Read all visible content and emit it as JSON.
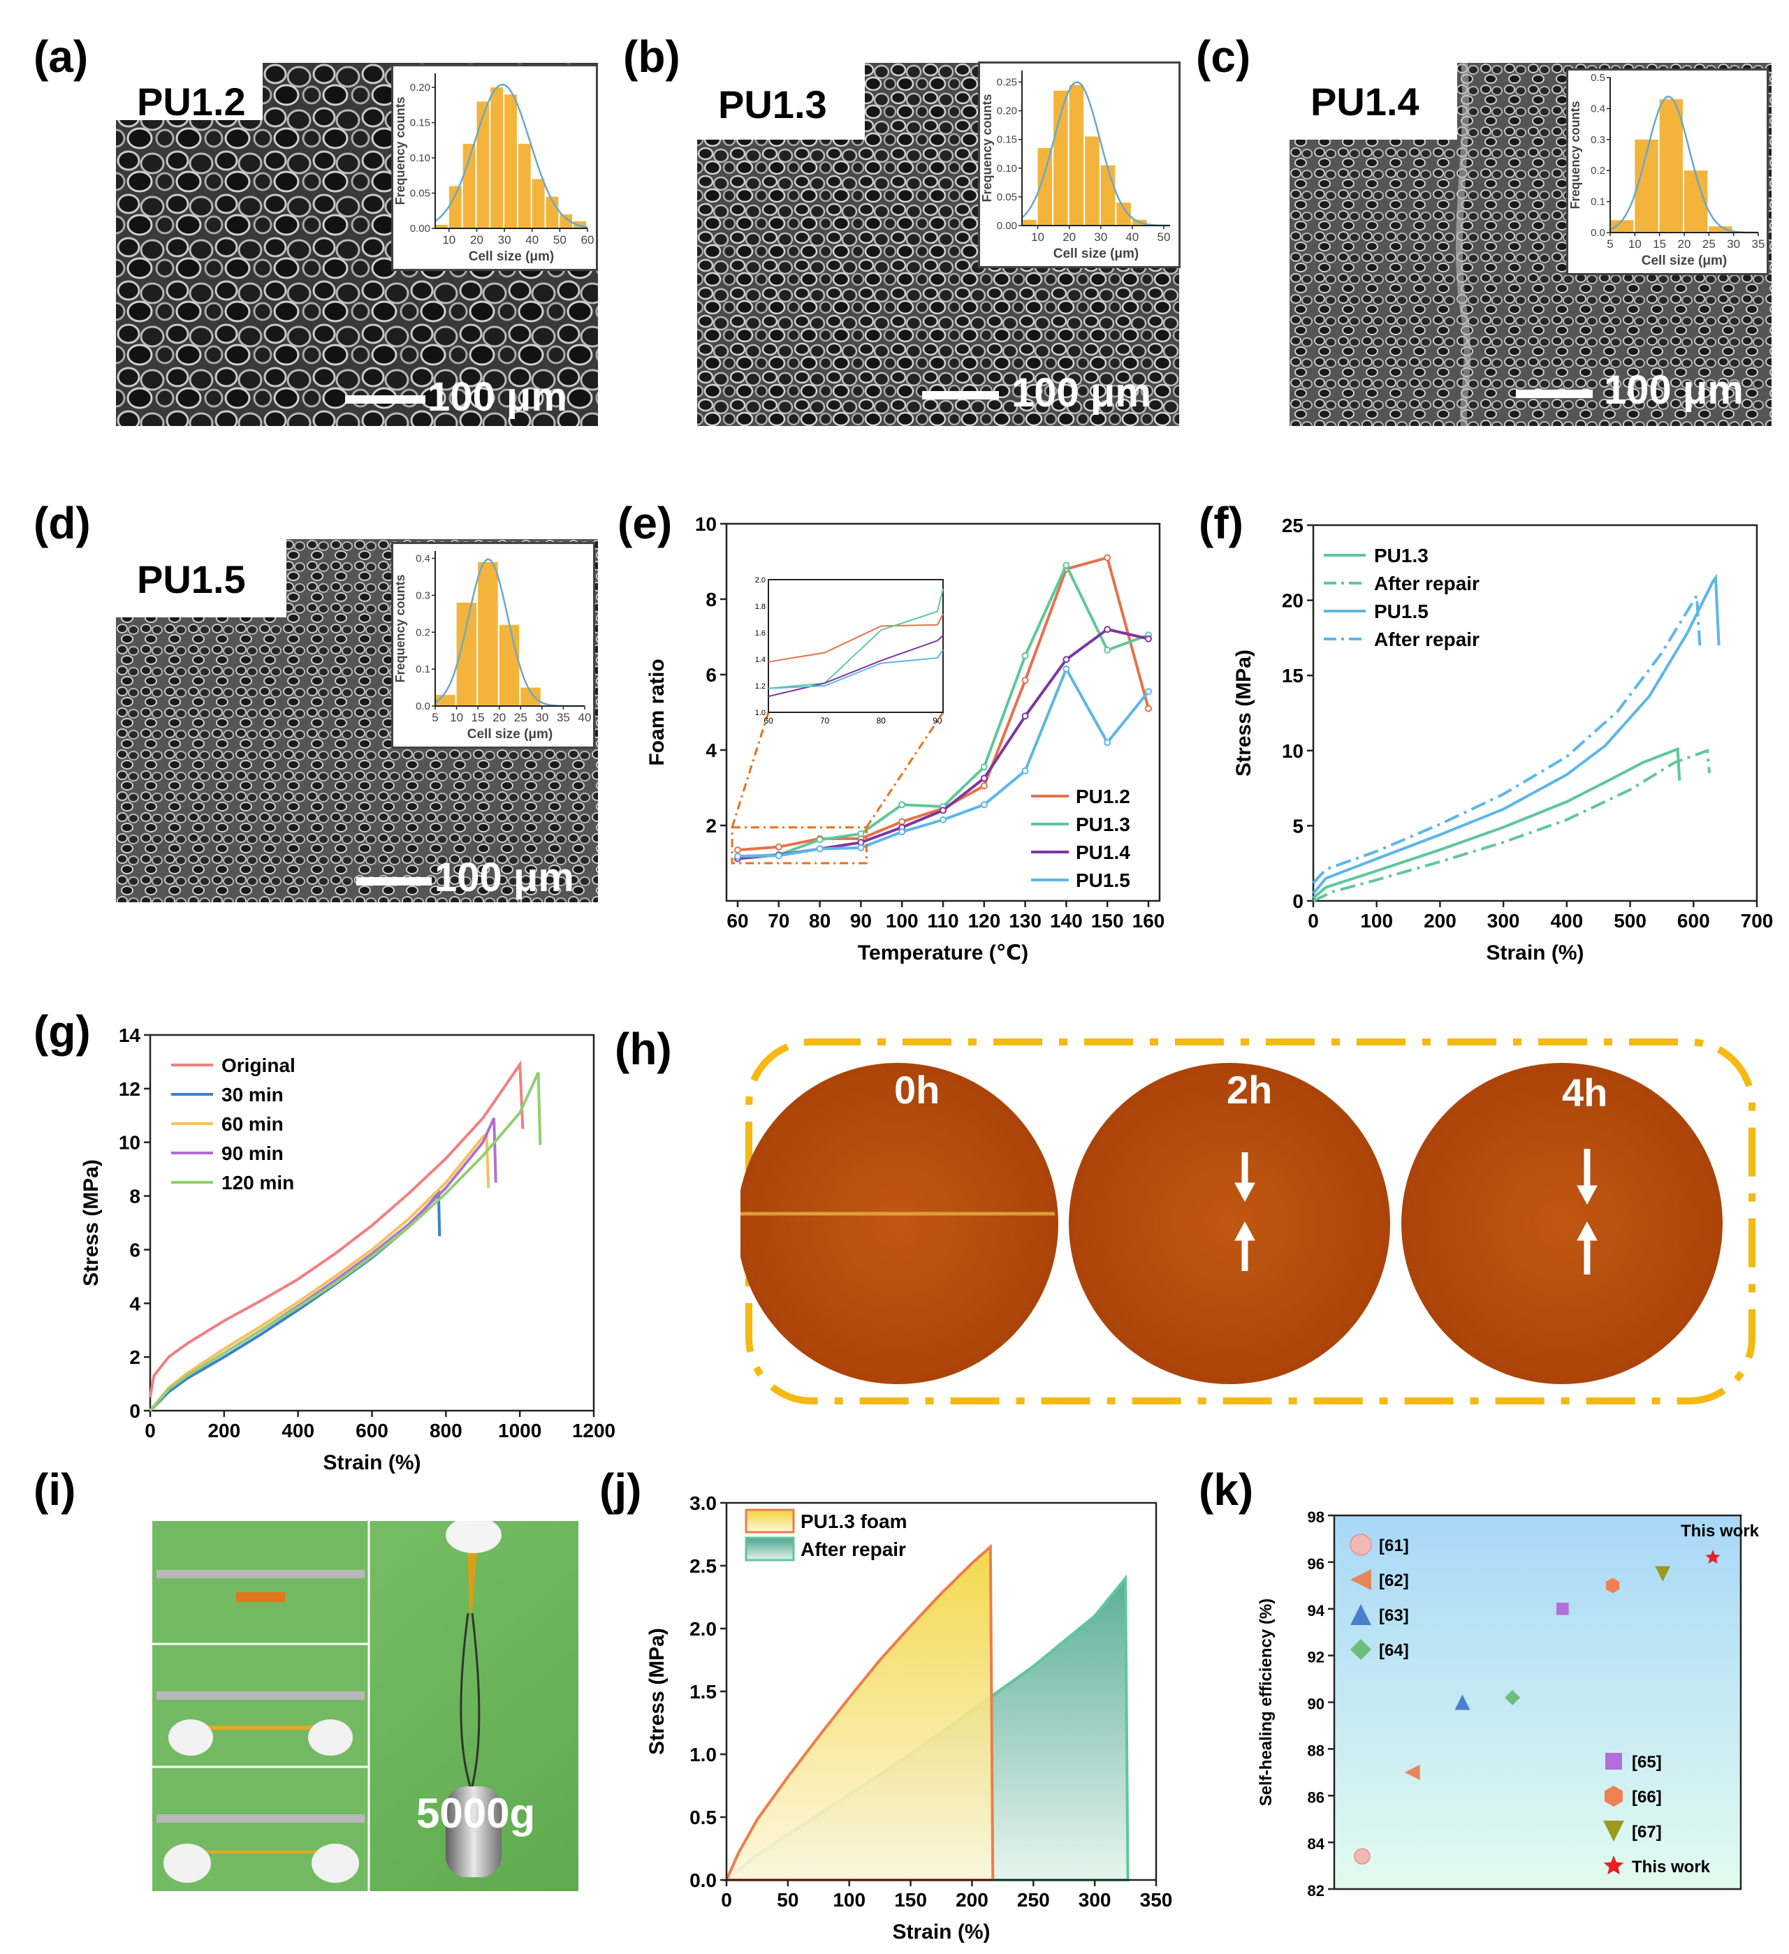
{
  "panels": {
    "a": {
      "letter": "(a)",
      "sample": "PU1.2",
      "scale": "100 μm",
      "inset": {
        "bins": [
          5,
          10,
          15,
          20,
          25,
          30,
          35,
          40,
          45,
          50,
          55
        ],
        "counts": [
          0.005,
          0.06,
          0.12,
          0.18,
          0.2,
          0.19,
          0.12,
          0.07,
          0.045,
          0.02,
          0.01
        ],
        "xticks": [
          "10",
          "20",
          "30",
          "40",
          "50",
          "60"
        ],
        "yticks": [
          "0.00",
          "0.05",
          "0.10",
          "0.15",
          "0.20"
        ],
        "xmin": 5,
        "xmax": 60,
        "ymax": 0.22,
        "xlabel": "Cell size (μm)",
        "ylabel": "Frequency counts"
      }
    },
    "b": {
      "letter": "(b)",
      "sample": "PU1.3",
      "scale": "100 μm",
      "inset": {
        "bins": [
          5,
          10,
          15,
          20,
          25,
          30,
          35,
          40
        ],
        "counts": [
          0.01,
          0.135,
          0.235,
          0.245,
          0.155,
          0.105,
          0.04,
          0.01
        ],
        "xticks": [
          "10",
          "20",
          "30",
          "40",
          "50"
        ],
        "yticks": [
          "0.00",
          "0.05",
          "0.10",
          "0.15",
          "0.20",
          "0.25"
        ],
        "xmin": 5,
        "xmax": 52,
        "ymax": 0.27,
        "xlabel": "Cell size (μm)",
        "ylabel": "Frequency counts"
      }
    },
    "c": {
      "letter": "(c)",
      "sample": "PU1.4",
      "scale": "100 μm",
      "inset": {
        "bins": [
          5,
          10,
          15,
          20,
          25,
          30
        ],
        "counts": [
          0.04,
          0.3,
          0.43,
          0.2,
          0.02,
          0.0
        ],
        "xticks": [
          "5",
          "10",
          "15",
          "20",
          "25",
          "30",
          "35"
        ],
        "yticks": [
          "0.0",
          "0.1",
          "0.2",
          "0.3",
          "0.4",
          "0.5"
        ],
        "xmin": 5,
        "xmax": 35,
        "ymax": 0.5,
        "xlabel": "Cell size (μm)",
        "ylabel": "Frequency counts"
      }
    },
    "d": {
      "letter": "(d)",
      "sample": "PU1.5",
      "scale": "100 μm",
      "inset": {
        "bins": [
          5,
          10,
          15,
          20,
          25
        ],
        "counts": [
          0.03,
          0.28,
          0.39,
          0.22,
          0.05
        ],
        "xticks": [
          "5",
          "10",
          "15",
          "20",
          "25",
          "30",
          "35",
          "40"
        ],
        "yticks": [
          "0.0",
          "0.1",
          "0.2",
          "0.3",
          "0.4"
        ],
        "xmin": 5,
        "xmax": 40,
        "ymax": 0.42,
        "xlabel": "Cell size (μm)",
        "ylabel": "Frequency counts"
      }
    },
    "e": {
      "letter": "(e)"
    },
    "f": {
      "letter": "(f)"
    },
    "g": {
      "letter": "(g)"
    },
    "h": {
      "letter": "(h)",
      "labels": [
        "0h",
        "2h",
        "4h"
      ]
    },
    "i": {
      "letter": "(i)",
      "weight": "5000g"
    },
    "j": {
      "letter": "(j)"
    },
    "k": {
      "letter": "(k)"
    }
  },
  "chart_data": [
    {
      "id": "e",
      "type": "line",
      "xlabel": "Temperature (℃)",
      "ylabel": "Foam ratio",
      "x": [
        60,
        70,
        80,
        90,
        100,
        110,
        120,
        130,
        140,
        150,
        160
      ],
      "xticks": [
        "60",
        "70",
        "80",
        "90",
        "100",
        "110",
        "120",
        "130",
        "140",
        "150",
        "160"
      ],
      "ylim": [
        0,
        10
      ],
      "yticks": [
        "2",
        "4",
        "6",
        "8",
        "10"
      ],
      "series": [
        {
          "name": "PU1.2",
          "color": "#e8704a",
          "values": [
            1.35,
            1.43,
            1.65,
            1.65,
            2.1,
            2.45,
            3.05,
            5.85,
            8.8,
            9.1,
            5.1
          ]
        },
        {
          "name": "PU1.3",
          "color": "#5fc79a",
          "values": [
            1.18,
            1.22,
            1.62,
            1.78,
            2.55,
            2.5,
            3.55,
            6.5,
            8.9,
            6.65,
            7.05
          ]
        },
        {
          "name": "PU1.4",
          "color": "#7d35a3",
          "values": [
            1.12,
            1.22,
            1.38,
            1.55,
            1.95,
            2.4,
            3.25,
            4.9,
            6.4,
            7.2,
            6.95
          ]
        },
        {
          "name": "PU1.5",
          "color": "#5cb6ea",
          "values": [
            1.18,
            1.2,
            1.38,
            1.41,
            1.83,
            2.15,
            2.55,
            3.45,
            6.15,
            4.2,
            5.55
          ]
        }
      ],
      "inset": {
        "xlim": [
          60,
          91
        ],
        "ylim": [
          1.0,
          2.0
        ],
        "xticks": [
          "60",
          "70",
          "80",
          "90"
        ],
        "yticks": [
          "1.0",
          "1.2",
          "1.4",
          "1.6",
          "1.8",
          "2.0"
        ],
        "x": [
          60,
          70,
          80,
          90,
          91
        ]
      }
    },
    {
      "id": "f",
      "type": "line",
      "xlabel": "Strain (%)",
      "ylabel": "Stress (MPa)",
      "xlim": [
        0,
        700
      ],
      "ylim": [
        0,
        25
      ],
      "xticks": [
        "0",
        "100",
        "200",
        "300",
        "400",
        "500",
        "600",
        "700"
      ],
      "yticks": [
        "0",
        "5",
        "10",
        "15",
        "20",
        "25"
      ],
      "series": [
        {
          "name": "PU1.3",
          "color": "#5fc79a",
          "dash": false,
          "points": [
            [
              0,
              0.2
            ],
            [
              20,
              0.9
            ],
            [
              100,
              2.0
            ],
            [
              200,
              3.4
            ],
            [
              300,
              4.9
            ],
            [
              400,
              6.6
            ],
            [
              470,
              8.1
            ],
            [
              520,
              9.2
            ],
            [
              575,
              10.1
            ],
            [
              578,
              8.0
            ]
          ]
        },
        {
          "name": "After repair",
          "color": "#5fc79a",
          "dash": true,
          "points": [
            [
              0,
              0
            ],
            [
              30,
              0.6
            ],
            [
              100,
              1.4
            ],
            [
              200,
              2.6
            ],
            [
              300,
              3.9
            ],
            [
              400,
              5.4
            ],
            [
              500,
              7.4
            ],
            [
              570,
              9.2
            ],
            [
              622,
              10.0
            ],
            [
              625,
              8.5
            ]
          ]
        },
        {
          "name": "PU1.5",
          "color": "#5cb6ea",
          "dash": false,
          "points": [
            [
              0,
              0.5
            ],
            [
              20,
              1.5
            ],
            [
              100,
              2.8
            ],
            [
              200,
              4.4
            ],
            [
              300,
              6.1
            ],
            [
              400,
              8.4
            ],
            [
              460,
              10.3
            ],
            [
              530,
              13.6
            ],
            [
              590,
              17.8
            ],
            [
              630,
              21.2
            ],
            [
              635,
              21.5
            ],
            [
              640,
              17.0
            ]
          ]
        },
        {
          "name": "After repair",
          "color": "#5cb6ea",
          "dash": true,
          "points": [
            [
              0,
              1.2
            ],
            [
              20,
              2.1
            ],
            [
              100,
              3.3
            ],
            [
              200,
              5.1
            ],
            [
              300,
              7.1
            ],
            [
              400,
              9.6
            ],
            [
              480,
              12.6
            ],
            [
              550,
              16.5
            ],
            [
              605,
              20.3
            ],
            [
              610,
              17.0
            ]
          ]
        }
      ]
    },
    {
      "id": "g",
      "type": "line",
      "xlabel": "Strain (%)",
      "ylabel": "Stress (MPa)",
      "xlim": [
        0,
        1200
      ],
      "ylim": [
        0,
        14
      ],
      "xticks": [
        "0",
        "200",
        "400",
        "600",
        "800",
        "1000",
        "1200"
      ],
      "yticks": [
        "0",
        "2",
        "4",
        "6",
        "8",
        "10",
        "12",
        "14"
      ],
      "series": [
        {
          "name": "Original",
          "color": "#f08080",
          "points": [
            [
              0,
              0.5
            ],
            [
              10,
              1.3
            ],
            [
              50,
              2.0
            ],
            [
              100,
              2.5
            ],
            [
              200,
              3.35
            ],
            [
              300,
              4.1
            ],
            [
              400,
              4.9
            ],
            [
              500,
              5.85
            ],
            [
              600,
              6.9
            ],
            [
              700,
              8.1
            ],
            [
              800,
              9.4
            ],
            [
              900,
              10.9
            ],
            [
              1000,
              12.9
            ],
            [
              1008,
              10.5
            ]
          ]
        },
        {
          "name": "30 min",
          "color": "#3b7fd0",
          "points": [
            [
              0,
              0
            ],
            [
              50,
              0.7
            ],
            [
              100,
              1.2
            ],
            [
              200,
              2.0
            ],
            [
              300,
              2.85
            ],
            [
              400,
              3.75
            ],
            [
              500,
              4.7
            ],
            [
              600,
              5.7
            ],
            [
              700,
              6.85
            ],
            [
              780,
              8.1
            ],
            [
              783,
              6.5
            ]
          ]
        },
        {
          "name": "60 min",
          "color": "#f5c060",
          "points": [
            [
              0,
              0
            ],
            [
              50,
              0.85
            ],
            [
              100,
              1.4
            ],
            [
              200,
              2.3
            ],
            [
              300,
              3.15
            ],
            [
              400,
              4.05
            ],
            [
              500,
              5.0
            ],
            [
              600,
              6.0
            ],
            [
              700,
              7.15
            ],
            [
              800,
              8.5
            ],
            [
              900,
              10.2
            ],
            [
              910,
              10.3
            ],
            [
              915,
              8.3
            ]
          ]
        },
        {
          "name": "90 min",
          "color": "#b070d0",
          "points": [
            [
              0,
              0
            ],
            [
              50,
              0.8
            ],
            [
              100,
              1.3
            ],
            [
              200,
              2.15
            ],
            [
              300,
              3.0
            ],
            [
              400,
              3.9
            ],
            [
              500,
              4.85
            ],
            [
              600,
              5.85
            ],
            [
              700,
              6.95
            ],
            [
              800,
              8.3
            ],
            [
              900,
              10.0
            ],
            [
              930,
              10.9
            ],
            [
              935,
              8.5
            ]
          ]
        },
        {
          "name": "120 min",
          "color": "#90d070",
          "points": [
            [
              0,
              0
            ],
            [
              50,
              0.8
            ],
            [
              100,
              1.3
            ],
            [
              200,
              2.15
            ],
            [
              300,
              3.0
            ],
            [
              400,
              3.85
            ],
            [
              500,
              4.75
            ],
            [
              600,
              5.75
            ],
            [
              700,
              6.85
            ],
            [
              800,
              8.1
            ],
            [
              900,
              9.5
            ],
            [
              1000,
              11.1
            ],
            [
              1050,
              12.6
            ],
            [
              1055,
              9.9
            ]
          ]
        }
      ]
    },
    {
      "id": "j",
      "type": "area",
      "xlabel": "Strain (%)",
      "ylabel": "Stress (MPa)",
      "xlim": [
        0,
        350
      ],
      "ylim": [
        0,
        3.0
      ],
      "xticks": [
        "0",
        "50",
        "100",
        "150",
        "200",
        "250",
        "300",
        "350"
      ],
      "yticks": [
        "0.0",
        "0.5",
        "1.0",
        "1.5",
        "2.0",
        "2.5",
        "3.0"
      ],
      "series": [
        {
          "name": "PU1.3 foam",
          "color": "#ed7d4a",
          "fill_top": "#f2d43a",
          "fill_bottom": "#fdf7dc",
          "points": [
            [
              0,
              0
            ],
            [
              10,
              0.22
            ],
            [
              25,
              0.48
            ],
            [
              50,
              0.82
            ],
            [
              75,
              1.14
            ],
            [
              100,
              1.45
            ],
            [
              125,
              1.75
            ],
            [
              150,
              2.02
            ],
            [
              175,
              2.28
            ],
            [
              200,
              2.52
            ],
            [
              215,
              2.65
            ],
            [
              217,
              0
            ]
          ]
        },
        {
          "name": "After repair",
          "color": "#5fc79a",
          "fill_top": "#4aa58e",
          "fill_bottom": "#e4f3ec",
          "points": [
            [
              0,
              0
            ],
            [
              25,
              0.2
            ],
            [
              50,
              0.36
            ],
            [
              100,
              0.68
            ],
            [
              150,
              1.0
            ],
            [
              200,
              1.35
            ],
            [
              250,
              1.7
            ],
            [
              300,
              2.1
            ],
            [
              325,
              2.4
            ],
            [
              327,
              0
            ]
          ]
        }
      ]
    },
    {
      "id": "k",
      "type": "scatter",
      "ylabel": "Self-healing efficiency (%)",
      "ylim": [
        82,
        98
      ],
      "yticks": [
        "82",
        "84",
        "86",
        "88",
        "90",
        "92",
        "94",
        "96",
        "98"
      ],
      "series": [
        {
          "name": "[61]",
          "marker": "sphere",
          "color": "#f2b8b8",
          "x": 1,
          "y": 83.4
        },
        {
          "name": "[62]",
          "marker": "triangle-left",
          "color": "#e7855a",
          "x": 2,
          "y": 87.0
        },
        {
          "name": "[63]",
          "marker": "triangle-up",
          "color": "#4a7fd0",
          "x": 3,
          "y": 90.0
        },
        {
          "name": "[64]",
          "marker": "diamond",
          "color": "#6cbf7a",
          "x": 4,
          "y": 90.2
        },
        {
          "name": "[65]",
          "marker": "square",
          "color": "#b070d8",
          "x": 5,
          "y": 94.0
        },
        {
          "name": "[66]",
          "marker": "hexagon",
          "color": "#f08050",
          "x": 6,
          "y": 95.0
        },
        {
          "name": "[67]",
          "marker": "triangle-down",
          "color": "#9a9a20",
          "x": 7,
          "y": 95.5
        },
        {
          "name": "This work",
          "marker": "star",
          "color": "#e82020",
          "x": 8,
          "y": 96.2
        }
      ],
      "annotation": "This work"
    }
  ]
}
